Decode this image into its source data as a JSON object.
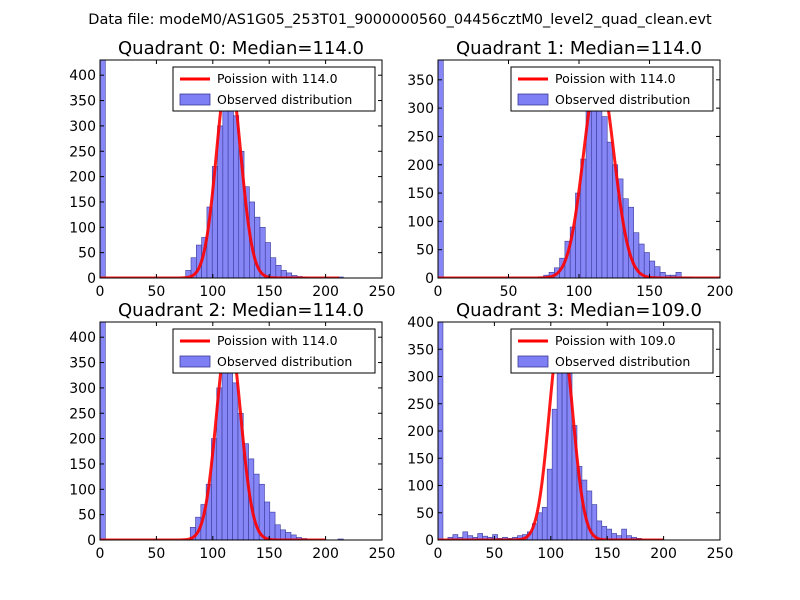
{
  "figure": {
    "suptitle": "Data file: modeM0/AS1G05_253T01_9000000560_04456cztM0_level2_quad_clean.evt",
    "background": "#ffffff"
  },
  "colors": {
    "hist_fill": "#7f7ff5",
    "hist_edge": "#3a3a9a",
    "poisson_line": "#ff0000",
    "poisson_overlap": "#f08080",
    "axes": "#000000"
  },
  "chart_data": [
    {
      "type": "bar",
      "title": "Quadrant 0: Median=114.0",
      "median": 114.0,
      "xlim": [
        0,
        250
      ],
      "ylim": [
        0,
        430
      ],
      "xticks": [
        0,
        50,
        100,
        150,
        200,
        250
      ],
      "yticks": [
        0,
        50,
        100,
        150,
        200,
        250,
        300,
        350,
        400
      ],
      "legend": {
        "placement": "top-right",
        "entries": [
          "Poission with 114.0",
          "Observed distribution"
        ]
      },
      "bin_width": 4.7,
      "bins": [
        [
          0,
          430
        ],
        [
          76,
          15
        ],
        [
          80.7,
          40
        ],
        [
          85.4,
          65
        ],
        [
          90.1,
          80
        ],
        [
          94.8,
          140
        ],
        [
          99.5,
          220
        ],
        [
          104.2,
          300
        ],
        [
          108.9,
          410
        ],
        [
          113.6,
          365
        ],
        [
          118.3,
          320
        ],
        [
          123,
          250
        ],
        [
          127.7,
          180
        ],
        [
          132.4,
          150
        ],
        [
          137.1,
          120
        ],
        [
          141.8,
          100
        ],
        [
          146.5,
          70
        ],
        [
          151.2,
          40
        ],
        [
          155.9,
          25
        ],
        [
          160.6,
          15
        ],
        [
          165.3,
          10
        ],
        [
          170,
          5
        ],
        [
          174.7,
          3
        ],
        [
          179.4,
          2
        ],
        [
          211,
          2
        ]
      ],
      "poisson": {
        "lambda": 114.0,
        "peak": 410,
        "x_range": [
          0,
          212
        ]
      }
    },
    {
      "type": "bar",
      "title": "Quadrant 1: Median=114.0",
      "median": 114.0,
      "xlim": [
        0,
        200
      ],
      "ylim": [
        0,
        385
      ],
      "xticks": [
        0,
        50,
        100,
        150,
        200
      ],
      "yticks": [
        0,
        50,
        100,
        150,
        200,
        250,
        300,
        350
      ],
      "legend": {
        "placement": "top-right",
        "entries": [
          "Poission with 114.0",
          "Observed distribution"
        ]
      },
      "bin_width": 3.75,
      "bins": [
        [
          0,
          385
        ],
        [
          71.25,
          2
        ],
        [
          75,
          5
        ],
        [
          78.75,
          10
        ],
        [
          82.5,
          18
        ],
        [
          86.25,
          35
        ],
        [
          90,
          65
        ],
        [
          93.75,
          90
        ],
        [
          97.5,
          150
        ],
        [
          101.25,
          210
        ],
        [
          105,
          320
        ],
        [
          108.75,
          360
        ],
        [
          112.5,
          330
        ],
        [
          116.25,
          285
        ],
        [
          120,
          240
        ],
        [
          123.75,
          200
        ],
        [
          127.5,
          175
        ],
        [
          131.25,
          140
        ],
        [
          135,
          125
        ],
        [
          138.75,
          80
        ],
        [
          142.5,
          60
        ],
        [
          146.25,
          45
        ],
        [
          150,
          30
        ],
        [
          153.75,
          20
        ],
        [
          157.5,
          10
        ],
        [
          161.25,
          5
        ],
        [
          165,
          5
        ],
        [
          168.75,
          10
        ],
        [
          172.5,
          2
        ],
        [
          176.25,
          2
        ]
      ],
      "poisson": {
        "lambda": 114.0,
        "peak": 365,
        "x_range": [
          0,
          200
        ]
      }
    },
    {
      "type": "bar",
      "title": "Quadrant 2: Median=114.0",
      "median": 114.0,
      "xlim": [
        0,
        250
      ],
      "ylim": [
        0,
        430
      ],
      "xticks": [
        0,
        50,
        100,
        150,
        200,
        250
      ],
      "yticks": [
        0,
        50,
        100,
        150,
        200,
        250,
        300,
        350,
        400
      ],
      "legend": {
        "placement": "top-right",
        "entries": [
          "Poission with 114.0",
          "Observed distribution"
        ]
      },
      "bin_width": 4.7,
      "bins": [
        [
          0,
          430
        ],
        [
          80,
          25
        ],
        [
          84.7,
          45
        ],
        [
          89.4,
          70
        ],
        [
          94.1,
          110
        ],
        [
          98.8,
          200
        ],
        [
          103.5,
          300
        ],
        [
          108.2,
          400
        ],
        [
          112.9,
          360
        ],
        [
          117.6,
          310
        ],
        [
          122.3,
          250
        ],
        [
          127,
          190
        ],
        [
          131.7,
          160
        ],
        [
          136.4,
          130
        ],
        [
          141.1,
          110
        ],
        [
          145.8,
          75
        ],
        [
          150.5,
          55
        ],
        [
          155.2,
          30
        ],
        [
          159.9,
          20
        ],
        [
          164.6,
          15
        ],
        [
          169.3,
          10
        ],
        [
          174,
          5
        ],
        [
          178.7,
          3
        ],
        [
          211,
          2
        ]
      ],
      "poisson": {
        "lambda": 114.0,
        "peak": 410,
        "x_range": [
          0,
          200
        ]
      }
    },
    {
      "type": "bar",
      "title": "Quadrant 3: Median=109.0",
      "median": 109.0,
      "xlim": [
        0,
        250
      ],
      "ylim": [
        0,
        400
      ],
      "xticks": [
        0,
        50,
        100,
        150,
        200,
        250
      ],
      "yticks": [
        0,
        50,
        100,
        150,
        200,
        250,
        300,
        350,
        400
      ],
      "legend": {
        "placement": "top-right",
        "entries": [
          "Poission with 109.0",
          "Observed distribution"
        ]
      },
      "bin_width": 4.4,
      "bins": [
        [
          0,
          400
        ],
        [
          8.8,
          5
        ],
        [
          13.2,
          10
        ],
        [
          17.6,
          5
        ],
        [
          22,
          15
        ],
        [
          26.4,
          8
        ],
        [
          30.8,
          5
        ],
        [
          35.2,
          12
        ],
        [
          39.6,
          7
        ],
        [
          44,
          5
        ],
        [
          48.4,
          10
        ],
        [
          52.8,
          3
        ],
        [
          57.2,
          5
        ],
        [
          61.6,
          3
        ],
        [
          66,
          5
        ],
        [
          70.4,
          8
        ],
        [
          74.8,
          10
        ],
        [
          79.2,
          15
        ],
        [
          83.6,
          30
        ],
        [
          88,
          50
        ],
        [
          92.4,
          60
        ],
        [
          96.8,
          130
        ],
        [
          101.2,
          240
        ],
        [
          105.6,
          365
        ],
        [
          110,
          380
        ],
        [
          114.4,
          310
        ],
        [
          118.8,
          210
        ],
        [
          123.2,
          135
        ],
        [
          127.6,
          110
        ],
        [
          132,
          90
        ],
        [
          136.4,
          65
        ],
        [
          140.8,
          35
        ],
        [
          145.2,
          25
        ],
        [
          149.6,
          20
        ],
        [
          154,
          12
        ],
        [
          158.4,
          8
        ],
        [
          162.8,
          20
        ],
        [
          167.2,
          8
        ],
        [
          171.6,
          5
        ],
        [
          176,
          3
        ]
      ],
      "poisson": {
        "lambda": 109.0,
        "peak": 385,
        "x_range": [
          0,
          200
        ]
      }
    }
  ]
}
